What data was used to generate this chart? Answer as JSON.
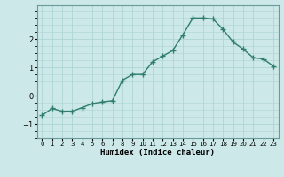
{
  "x": [
    0,
    1,
    2,
    3,
    4,
    5,
    6,
    7,
    8,
    9,
    10,
    11,
    12,
    13,
    14,
    15,
    16,
    17,
    18,
    19,
    20,
    21,
    22,
    23
  ],
  "y": [
    -0.7,
    -0.45,
    -0.55,
    -0.55,
    -0.42,
    -0.28,
    -0.22,
    -0.18,
    0.55,
    0.75,
    0.75,
    1.2,
    1.4,
    1.6,
    2.15,
    2.75,
    2.75,
    2.72,
    2.35,
    1.9,
    1.65,
    1.35,
    1.3,
    1.05
  ],
  "xlabel": "Humidex (Indice chaleur)",
  "ylim": [
    -1.5,
    3.2
  ],
  "xlim": [
    -0.5,
    23.5
  ],
  "yticks": [
    -1,
    0,
    1,
    2
  ],
  "xticks": [
    0,
    1,
    2,
    3,
    4,
    5,
    6,
    7,
    8,
    9,
    10,
    11,
    12,
    13,
    14,
    15,
    16,
    17,
    18,
    19,
    20,
    21,
    22,
    23
  ],
  "line_color": "#2e7d6e",
  "bg_color": "#cce8e8",
  "grid_color": "#aed4d4",
  "marker": "+",
  "linewidth": 1.0,
  "markersize": 4,
  "markeredgewidth": 1.0
}
